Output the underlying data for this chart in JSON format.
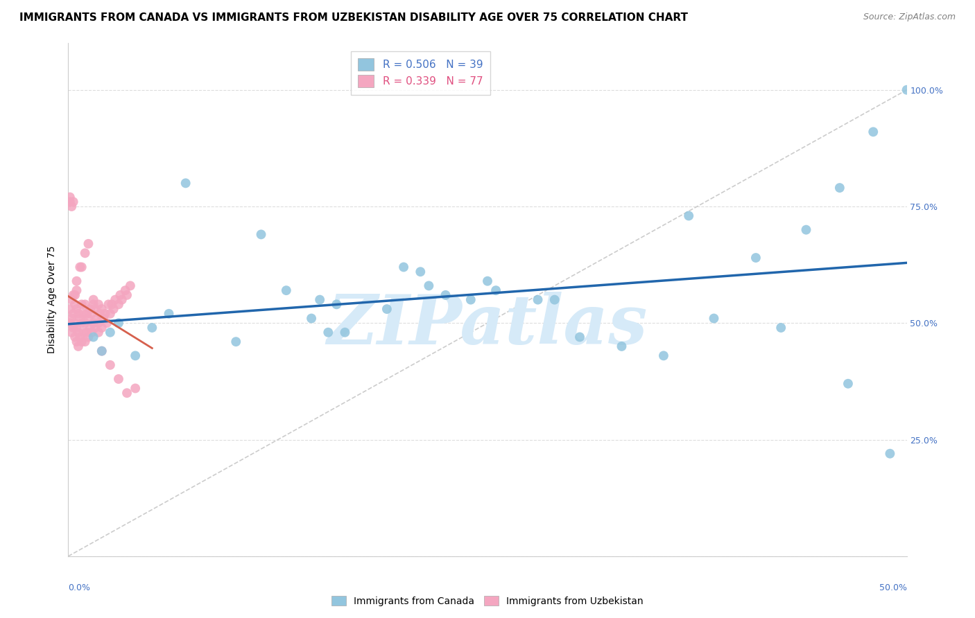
{
  "title": "IMMIGRANTS FROM CANADA VS IMMIGRANTS FROM UZBEKISTAN DISABILITY AGE OVER 75 CORRELATION CHART",
  "source": "Source: ZipAtlas.com",
  "ylabel": "Disability Age Over 75",
  "xlim": [
    0.0,
    0.5
  ],
  "ylim": [
    0.0,
    1.1
  ],
  "canada_color": "#92c5de",
  "uzbekistan_color": "#f4a6c0",
  "canada_line_color": "#2166ac",
  "uzbekistan_line_color": "#d6604d",
  "watermark": "ZIPatlas",
  "watermark_color": "#d6eaf8",
  "background_color": "#ffffff",
  "legend_r1": "R = 0.506",
  "legend_n1": "N = 39",
  "legend_r2": "R = 0.339",
  "legend_n2": "N = 77",
  "legend_label1": "Immigrants from Canada",
  "legend_label2": "Immigrants from Uzbekistan",
  "canada_x": [
    0.015,
    0.02,
    0.025,
    0.03,
    0.04,
    0.05,
    0.06,
    0.07,
    0.1,
    0.115,
    0.13,
    0.145,
    0.15,
    0.155,
    0.16,
    0.165,
    0.19,
    0.2,
    0.21,
    0.215,
    0.225,
    0.24,
    0.25,
    0.255,
    0.28,
    0.29,
    0.305,
    0.33,
    0.355,
    0.37,
    0.385,
    0.41,
    0.425,
    0.44,
    0.46,
    0.465,
    0.48,
    0.49,
    0.5
  ],
  "canada_y": [
    0.47,
    0.44,
    0.48,
    0.5,
    0.43,
    0.49,
    0.52,
    0.8,
    0.46,
    0.69,
    0.57,
    0.51,
    0.55,
    0.48,
    0.54,
    0.48,
    0.53,
    0.62,
    0.61,
    0.58,
    0.56,
    0.55,
    0.59,
    0.57,
    0.55,
    0.55,
    0.47,
    0.45,
    0.43,
    0.73,
    0.51,
    0.64,
    0.49,
    0.7,
    0.79,
    0.37,
    0.91,
    0.22,
    1.0
  ],
  "uzbekistan_x": [
    0.001,
    0.001,
    0.002,
    0.002,
    0.002,
    0.003,
    0.003,
    0.003,
    0.004,
    0.004,
    0.004,
    0.005,
    0.005,
    0.005,
    0.005,
    0.006,
    0.006,
    0.006,
    0.007,
    0.007,
    0.008,
    0.008,
    0.008,
    0.009,
    0.009,
    0.01,
    0.01,
    0.01,
    0.011,
    0.011,
    0.012,
    0.012,
    0.013,
    0.013,
    0.014,
    0.014,
    0.015,
    0.015,
    0.016,
    0.016,
    0.017,
    0.018,
    0.018,
    0.019,
    0.02,
    0.02,
    0.021,
    0.022,
    0.023,
    0.024,
    0.025,
    0.026,
    0.027,
    0.028,
    0.03,
    0.031,
    0.032,
    0.034,
    0.035,
    0.037,
    0.001,
    0.001,
    0.002,
    0.003,
    0.004,
    0.005,
    0.007,
    0.008,
    0.01,
    0.012,
    0.015,
    0.018,
    0.02,
    0.025,
    0.03,
    0.035,
    0.04
  ],
  "uzbekistan_y": [
    0.5,
    0.53,
    0.48,
    0.51,
    0.55,
    0.49,
    0.52,
    0.56,
    0.47,
    0.5,
    0.54,
    0.46,
    0.49,
    0.53,
    0.57,
    0.45,
    0.48,
    0.52,
    0.47,
    0.51,
    0.46,
    0.5,
    0.54,
    0.48,
    0.52,
    0.46,
    0.5,
    0.54,
    0.48,
    0.52,
    0.47,
    0.51,
    0.49,
    0.53,
    0.48,
    0.52,
    0.5,
    0.54,
    0.49,
    0.53,
    0.51,
    0.5,
    0.54,
    0.52,
    0.49,
    0.53,
    0.51,
    0.52,
    0.5,
    0.54,
    0.52,
    0.54,
    0.53,
    0.55,
    0.54,
    0.56,
    0.55,
    0.57,
    0.56,
    0.58,
    0.76,
    0.77,
    0.75,
    0.76,
    0.56,
    0.59,
    0.62,
    0.62,
    0.65,
    0.67,
    0.55,
    0.48,
    0.44,
    0.41,
    0.38,
    0.35,
    0.36
  ],
  "title_fontsize": 11,
  "source_fontsize": 9,
  "axis_label_fontsize": 10,
  "tick_fontsize": 9,
  "legend_fontsize": 11
}
